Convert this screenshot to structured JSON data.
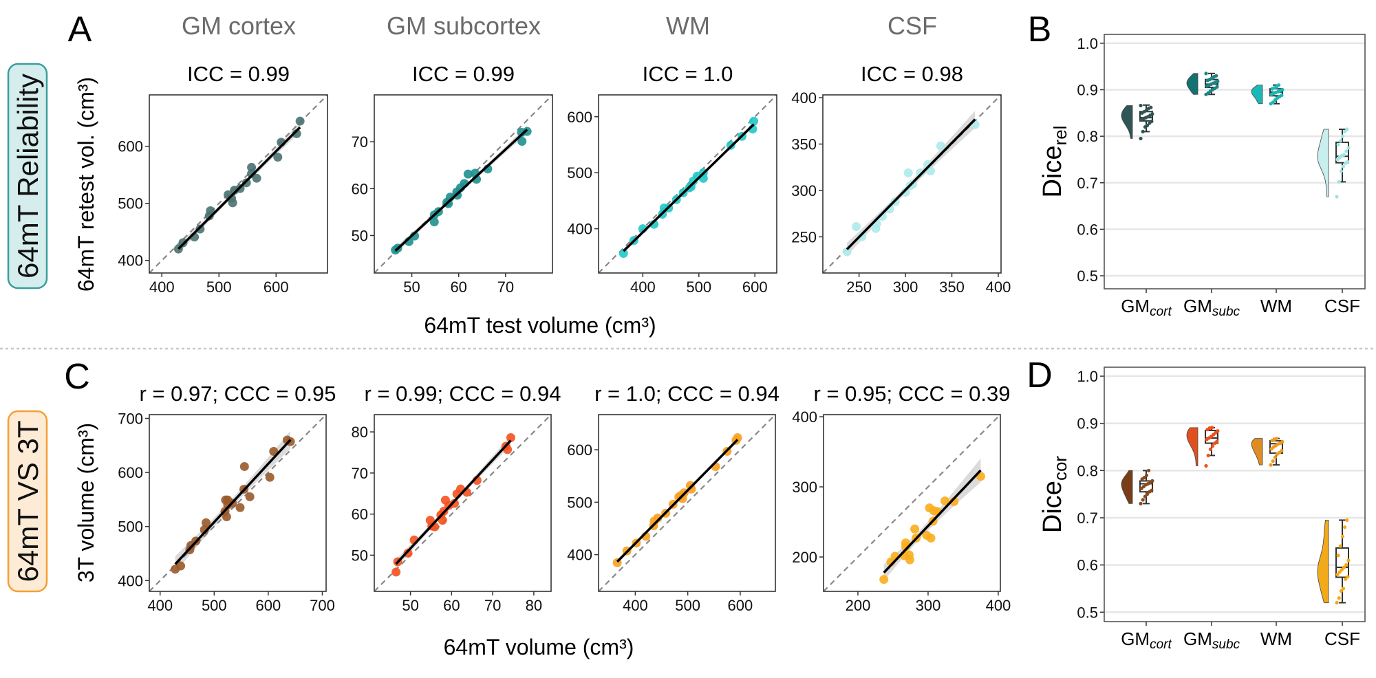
{
  "row_labels": {
    "reliability": "64mT Reliability",
    "comparison": "64mT VS 3T"
  },
  "panel_letters": {
    "a": "A",
    "b": "B",
    "c": "C",
    "d": "D"
  },
  "column_titles": [
    "GM cortex",
    "GM subcortex",
    "WM",
    "CSF"
  ],
  "row_a": {
    "ylabel": "64mT retest vol. (cm³)",
    "xlabel": "64mT test volume (cm³)"
  },
  "row_c": {
    "ylabel": "3T volume (cm³)",
    "xlabel": "64mT volume (cm³)"
  },
  "colors": {
    "reliability_border": "#3a9e9e",
    "reliability_fill": "#d6eded",
    "comparison_border": "#f5a033",
    "comparison_fill": "#fdebd6"
  },
  "chart_data": [
    {
      "type": "scatter",
      "panel": "A",
      "title": "ICC = 0.99",
      "xlim": [
        378,
        690
      ],
      "ylim": [
        378,
        690
      ],
      "xticks": [
        400,
        500,
        600
      ],
      "yticks": [
        400,
        500,
        600
      ],
      "color": "#4a7272",
      "points": [
        [
          429,
          420
        ],
        [
          437,
          431
        ],
        [
          457,
          441
        ],
        [
          467,
          455
        ],
        [
          483,
          478
        ],
        [
          485,
          487
        ],
        [
          516,
          515
        ],
        [
          522,
          509
        ],
        [
          524,
          501
        ],
        [
          527,
          523
        ],
        [
          537,
          526
        ],
        [
          548,
          536
        ],
        [
          557,
          563
        ],
        [
          557,
          552
        ],
        [
          566,
          544
        ],
        [
          603,
          581
        ],
        [
          609,
          607
        ],
        [
          636,
          622
        ],
        [
          642,
          644
        ]
      ]
    },
    {
      "type": "scatter",
      "panel": "A",
      "title": "ICC = 0.99",
      "xlim": [
        42,
        80
      ],
      "ylim": [
        42,
        80
      ],
      "xticks": [
        50,
        60,
        70
      ],
      "yticks": [
        50,
        60,
        70
      ],
      "color": "#1f8f8f",
      "points": [
        [
          46.5,
          46.9
        ],
        [
          47,
          47.3
        ],
        [
          49.4,
          48.7
        ],
        [
          50.6,
          49.9
        ],
        [
          54.8,
          52.9
        ],
        [
          54.8,
          54.4
        ],
        [
          55.7,
          55.1
        ],
        [
          57.5,
          57.1
        ],
        [
          57.8,
          56.8
        ],
        [
          58.2,
          58.2
        ],
        [
          59.6,
          59.3
        ],
        [
          59.7,
          58.6
        ],
        [
          60.4,
          60.2
        ],
        [
          61.2,
          61.1
        ],
        [
          62.0,
          63.1
        ],
        [
          63.5,
          63.3
        ],
        [
          63.8,
          62.0
        ],
        [
          66.2,
          64.2
        ],
        [
          73.4,
          72.0
        ],
        [
          73.5,
          70.1
        ],
        [
          74.6,
          72.2
        ]
      ]
    },
    {
      "type": "scatter",
      "panel": "A",
      "title": "ICC = 1.0",
      "xlim": [
        321,
        639
      ],
      "ylim": [
        321,
        639
      ],
      "xticks": [
        400,
        500,
        600
      ],
      "yticks": [
        400,
        500,
        600
      ],
      "color": "#22c8c8",
      "points": [
        [
          365.5,
          356
        ],
        [
          384,
          379
        ],
        [
          400,
          400
        ],
        [
          420,
          408
        ],
        [
          435,
          426
        ],
        [
          438,
          437
        ],
        [
          446,
          437
        ],
        [
          460,
          452
        ],
        [
          472,
          464
        ],
        [
          483,
          473
        ],
        [
          486,
          475
        ],
        [
          490,
          485
        ],
        [
          497,
          494
        ],
        [
          508,
          490
        ],
        [
          508,
          500
        ],
        [
          557,
          549
        ],
        [
          577,
          565
        ],
        [
          596,
          578
        ],
        [
          598,
          592
        ]
      ]
    },
    {
      "type": "scatter",
      "panel": "A",
      "title": "ICC = 0.98",
      "xlim": [
        211,
        403
      ],
      "ylim": [
        211,
        403
      ],
      "xticks": [
        250,
        300,
        350,
        400
      ],
      "yticks": [
        250,
        300,
        350,
        400
      ],
      "color": "#aeeaea",
      "points": [
        [
          237,
          234
        ],
        [
          247,
          261
        ],
        [
          253,
          250
        ],
        [
          268,
          259
        ],
        [
          269,
          264
        ],
        [
          275,
          272
        ],
        [
          283,
          280
        ],
        [
          289,
          288
        ],
        [
          300,
          298
        ],
        [
          305,
          305
        ],
        [
          308,
          307
        ],
        [
          303,
          319
        ],
        [
          316,
          319
        ],
        [
          324,
          328
        ],
        [
          327,
          321
        ],
        [
          338,
          348
        ],
        [
          375,
          371
        ]
      ]
    },
    {
      "type": "scatter",
      "panel": "C",
      "title": "r = 0.97; CCC = 0.95",
      "xlim": [
        380,
        707
      ],
      "ylim": [
        380,
        707
      ],
      "xticks": [
        400,
        500,
        600,
        700
      ],
      "yticks": [
        400,
        500,
        600,
        700
      ],
      "color": "#9a5a2a",
      "points": [
        [
          428,
          421
        ],
        [
          438,
          427
        ],
        [
          455,
          457
        ],
        [
          457,
          465
        ],
        [
          466,
          473
        ],
        [
          482,
          494
        ],
        [
          485,
          507
        ],
        [
          520,
          528
        ],
        [
          521,
          549
        ],
        [
          525,
          549
        ],
        [
          523,
          518
        ],
        [
          525,
          540
        ],
        [
          534,
          543
        ],
        [
          548,
          535
        ],
        [
          555,
          569
        ],
        [
          556,
          611
        ],
        [
          566,
          555
        ],
        [
          603,
          591
        ],
        [
          610,
          639
        ],
        [
          635,
          660
        ],
        [
          641,
          657
        ]
      ]
    },
    {
      "type": "scatter",
      "panel": "C",
      "title": "r = 0.99; CCC = 0.94",
      "xlim": [
        41.2,
        84.2
      ],
      "ylim": [
        41.2,
        84.2
      ],
      "xticks": [
        50,
        60,
        70,
        80
      ],
      "yticks": [
        50,
        60,
        70,
        80
      ],
      "color": "#f4521f",
      "points": [
        [
          46.5,
          45.9
        ],
        [
          46.9,
          48.4
        ],
        [
          49.4,
          50.5
        ],
        [
          50.9,
          53.7
        ],
        [
          54.8,
          58.5
        ],
        [
          55.2,
          57.1
        ],
        [
          55.9,
          56.9
        ],
        [
          57.4,
          59.8
        ],
        [
          57.8,
          58.5
        ],
        [
          58.1,
          60.7
        ],
        [
          58.5,
          63.4
        ],
        [
          59.3,
          62.1
        ],
        [
          60.7,
          62.6
        ],
        [
          61.3,
          64.9
        ],
        [
          62.2,
          66.1
        ],
        [
          63.7,
          65.3
        ],
        [
          66.2,
          68.2
        ],
        [
          73.2,
          76.5
        ],
        [
          73.6,
          75.7
        ],
        [
          74.4,
          78.6
        ]
      ]
    },
    {
      "type": "scatter",
      "panel": "C",
      "title": "r = 1.0; CCC = 0.94",
      "xlim": [
        330,
        667
      ],
      "ylim": [
        330,
        667
      ],
      "xticks": [
        400,
        500,
        600
      ],
      "yticks": [
        400,
        500,
        600
      ],
      "color": "#f7a020",
      "points": [
        [
          365.6,
          384.7
        ],
        [
          384,
          407
        ],
        [
          402,
          422
        ],
        [
          420,
          435
        ],
        [
          436,
          464
        ],
        [
          443,
          470
        ],
        [
          435,
          455
        ],
        [
          458,
          479
        ],
        [
          472,
          496
        ],
        [
          483,
          510
        ],
        [
          487,
          513
        ],
        [
          490,
          507
        ],
        [
          493,
          518
        ],
        [
          505,
          532
        ],
        [
          507,
          525
        ],
        [
          553,
          568
        ],
        [
          575,
          597
        ],
        [
          592,
          618
        ],
        [
          595,
          623
        ]
      ]
    },
    {
      "type": "scatter",
      "panel": "C",
      "title": "r = 0.95; CCC = 0.39",
      "xlim": [
        151,
        403
      ],
      "ylim": [
        151,
        403
      ],
      "xticks": [
        200,
        300,
        400
      ],
      "yticks": [
        200,
        300,
        400
      ],
      "color": "#fbad1c",
      "points": [
        [
          237,
          168
        ],
        [
          247,
          193
        ],
        [
          253,
          201
        ],
        [
          268,
          220
        ],
        [
          268,
          215
        ],
        [
          266,
          202
        ],
        [
          273,
          203
        ],
        [
          274,
          196
        ],
        [
          281,
          240
        ],
        [
          283,
          227
        ],
        [
          298,
          231
        ],
        [
          304,
          227
        ],
        [
          307,
          251
        ],
        [
          302,
          270
        ],
        [
          308,
          266
        ],
        [
          313,
          265
        ],
        [
          324,
          280
        ],
        [
          337,
          279
        ],
        [
          375,
          315
        ]
      ]
    },
    {
      "type": "box",
      "panel": "B",
      "ylabel_main": "Dice",
      "ylabel_sub": "rel",
      "ylim": [
        0.472,
        1.019
      ],
      "yticks": [
        "0.5",
        "0.6",
        "0.7",
        "0.8",
        "0.9",
        "1.0"
      ],
      "categories": [
        {
          "main": "GM",
          "sub": "cort"
        },
        {
          "main": "GM",
          "sub": "subc"
        },
        {
          "main": "WM",
          "sub": ""
        },
        {
          "main": "CSF",
          "sub": ""
        }
      ],
      "groups": [
        {
          "color": "#2f5656",
          "point_color": "#2f5656",
          "whisker_low": 0.81,
          "q1": 0.833,
          "median": 0.84,
          "q3": 0.853,
          "whisker_high": 0.867,
          "points": [
            0.795,
            0.81,
            0.82,
            0.823,
            0.828,
            0.832,
            0.835,
            0.838,
            0.84,
            0.842,
            0.845,
            0.848,
            0.85,
            0.853,
            0.856,
            0.86,
            0.862,
            0.866
          ]
        },
        {
          "color": "#127272",
          "point_color": "#1a8585",
          "whisker_low": 0.89,
          "q1": 0.905,
          "median": 0.912,
          "q3": 0.922,
          "whisker_high": 0.935,
          "points": [
            0.89,
            0.893,
            0.897,
            0.9,
            0.903,
            0.906,
            0.908,
            0.91,
            0.912,
            0.914,
            0.916,
            0.918,
            0.92,
            0.922,
            0.925,
            0.928,
            0.93,
            0.935
          ]
        },
        {
          "color": "#1bb8b8",
          "point_color": "#1bb8b8",
          "whisker_low": 0.87,
          "q1": 0.887,
          "median": 0.895,
          "q3": 0.902,
          "whisker_high": 0.91,
          "points": [
            0.87,
            0.873,
            0.878,
            0.882,
            0.885,
            0.888,
            0.89,
            0.892,
            0.894,
            0.896,
            0.898,
            0.9,
            0.902,
            0.904,
            0.906,
            0.91
          ]
        },
        {
          "color": "#c8eeee",
          "point_color": "#9fe4e4",
          "whisker_low": 0.702,
          "q1": 0.743,
          "median": 0.757,
          "q3": 0.787,
          "whisker_high": 0.815,
          "points": [
            0.67,
            0.702,
            0.725,
            0.735,
            0.742,
            0.745,
            0.75,
            0.755,
            0.758,
            0.76,
            0.768,
            0.775,
            0.782,
            0.79,
            0.8,
            0.81,
            0.815
          ]
        }
      ]
    },
    {
      "type": "box",
      "panel": "D",
      "ylabel_main": "Dice",
      "ylabel_sub": "cor",
      "ylim": [
        0.48,
        1.019
      ],
      "yticks": [
        "0.5",
        "0.6",
        "0.7",
        "0.8",
        "0.9",
        "1.0"
      ],
      "categories": [
        {
          "main": "GM",
          "sub": "cort"
        },
        {
          "main": "GM",
          "sub": "subc"
        },
        {
          "main": "WM",
          "sub": ""
        },
        {
          "main": "CSF",
          "sub": ""
        }
      ],
      "groups": [
        {
          "color": "#7b3d17",
          "point_color": "#8b4a1e",
          "whisker_low": 0.73,
          "q1": 0.755,
          "median": 0.772,
          "q3": 0.778,
          "whisker_high": 0.8,
          "points": [
            0.73,
            0.738,
            0.745,
            0.75,
            0.755,
            0.758,
            0.762,
            0.766,
            0.77,
            0.772,
            0.775,
            0.778,
            0.782,
            0.785,
            0.79,
            0.8
          ]
        },
        {
          "color": "#e0501e",
          "point_color": "#f0501a",
          "whisker_low": 0.832,
          "q1": 0.858,
          "median": 0.869,
          "q3": 0.885,
          "whisker_high": 0.891,
          "points": [
            0.81,
            0.832,
            0.845,
            0.852,
            0.858,
            0.862,
            0.866,
            0.869,
            0.872,
            0.876,
            0.88,
            0.884,
            0.887,
            0.89,
            0.891
          ]
        },
        {
          "color": "#e08c22",
          "point_color": "#f09a20",
          "whisker_low": 0.812,
          "q1": 0.837,
          "median": 0.857,
          "q3": 0.863,
          "whisker_high": 0.868,
          "points": [
            0.812,
            0.82,
            0.828,
            0.835,
            0.838,
            0.842,
            0.846,
            0.85,
            0.853,
            0.856,
            0.858,
            0.861,
            0.864,
            0.866,
            0.868
          ]
        },
        {
          "color": "#f2aa1a",
          "point_color": "#f7a810",
          "whisker_low": 0.52,
          "q1": 0.574,
          "median": 0.595,
          "q3": 0.636,
          "whisker_high": 0.695,
          "points": [
            0.52,
            0.53,
            0.545,
            0.55,
            0.57,
            0.575,
            0.58,
            0.585,
            0.59,
            0.595,
            0.6,
            0.61,
            0.62,
            0.64,
            0.66,
            0.68,
            0.695
          ]
        }
      ]
    }
  ]
}
